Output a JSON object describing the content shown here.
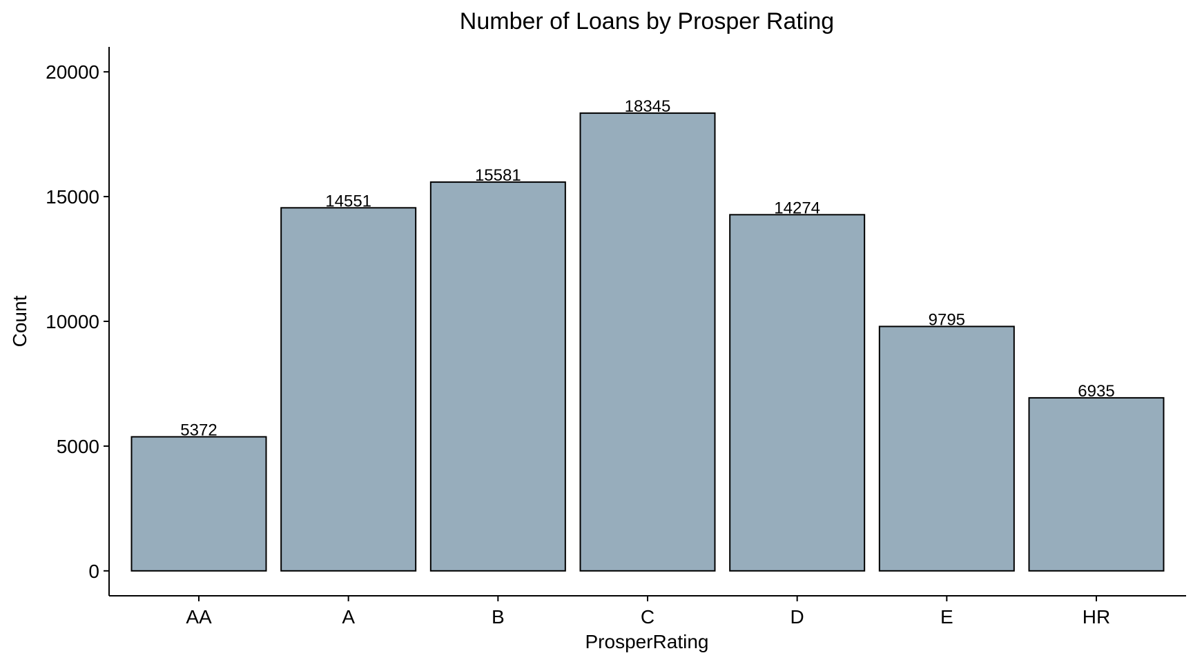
{
  "chart_data": {
    "type": "bar",
    "title": "Number of Loans by Prosper Rating",
    "xlabel": "ProsperRating",
    "ylabel": "Count",
    "categories": [
      "AA",
      "A",
      "B",
      "C",
      "D",
      "E",
      "HR"
    ],
    "values": [
      5372,
      14551,
      15581,
      18345,
      14274,
      9795,
      6935
    ],
    "data_labels": [
      "5372",
      "14551",
      "15581",
      "18345",
      "14274",
      "9795",
      "6935"
    ],
    "yticks": [
      0,
      5000,
      10000,
      15000,
      20000
    ],
    "ytick_labels": [
      "0",
      "5000",
      "10000",
      "15000",
      "20000"
    ],
    "ylim": [
      -1000,
      21000
    ],
    "grid": false,
    "bar_color": "#97adbc",
    "bar_border_color": "#000000"
  }
}
